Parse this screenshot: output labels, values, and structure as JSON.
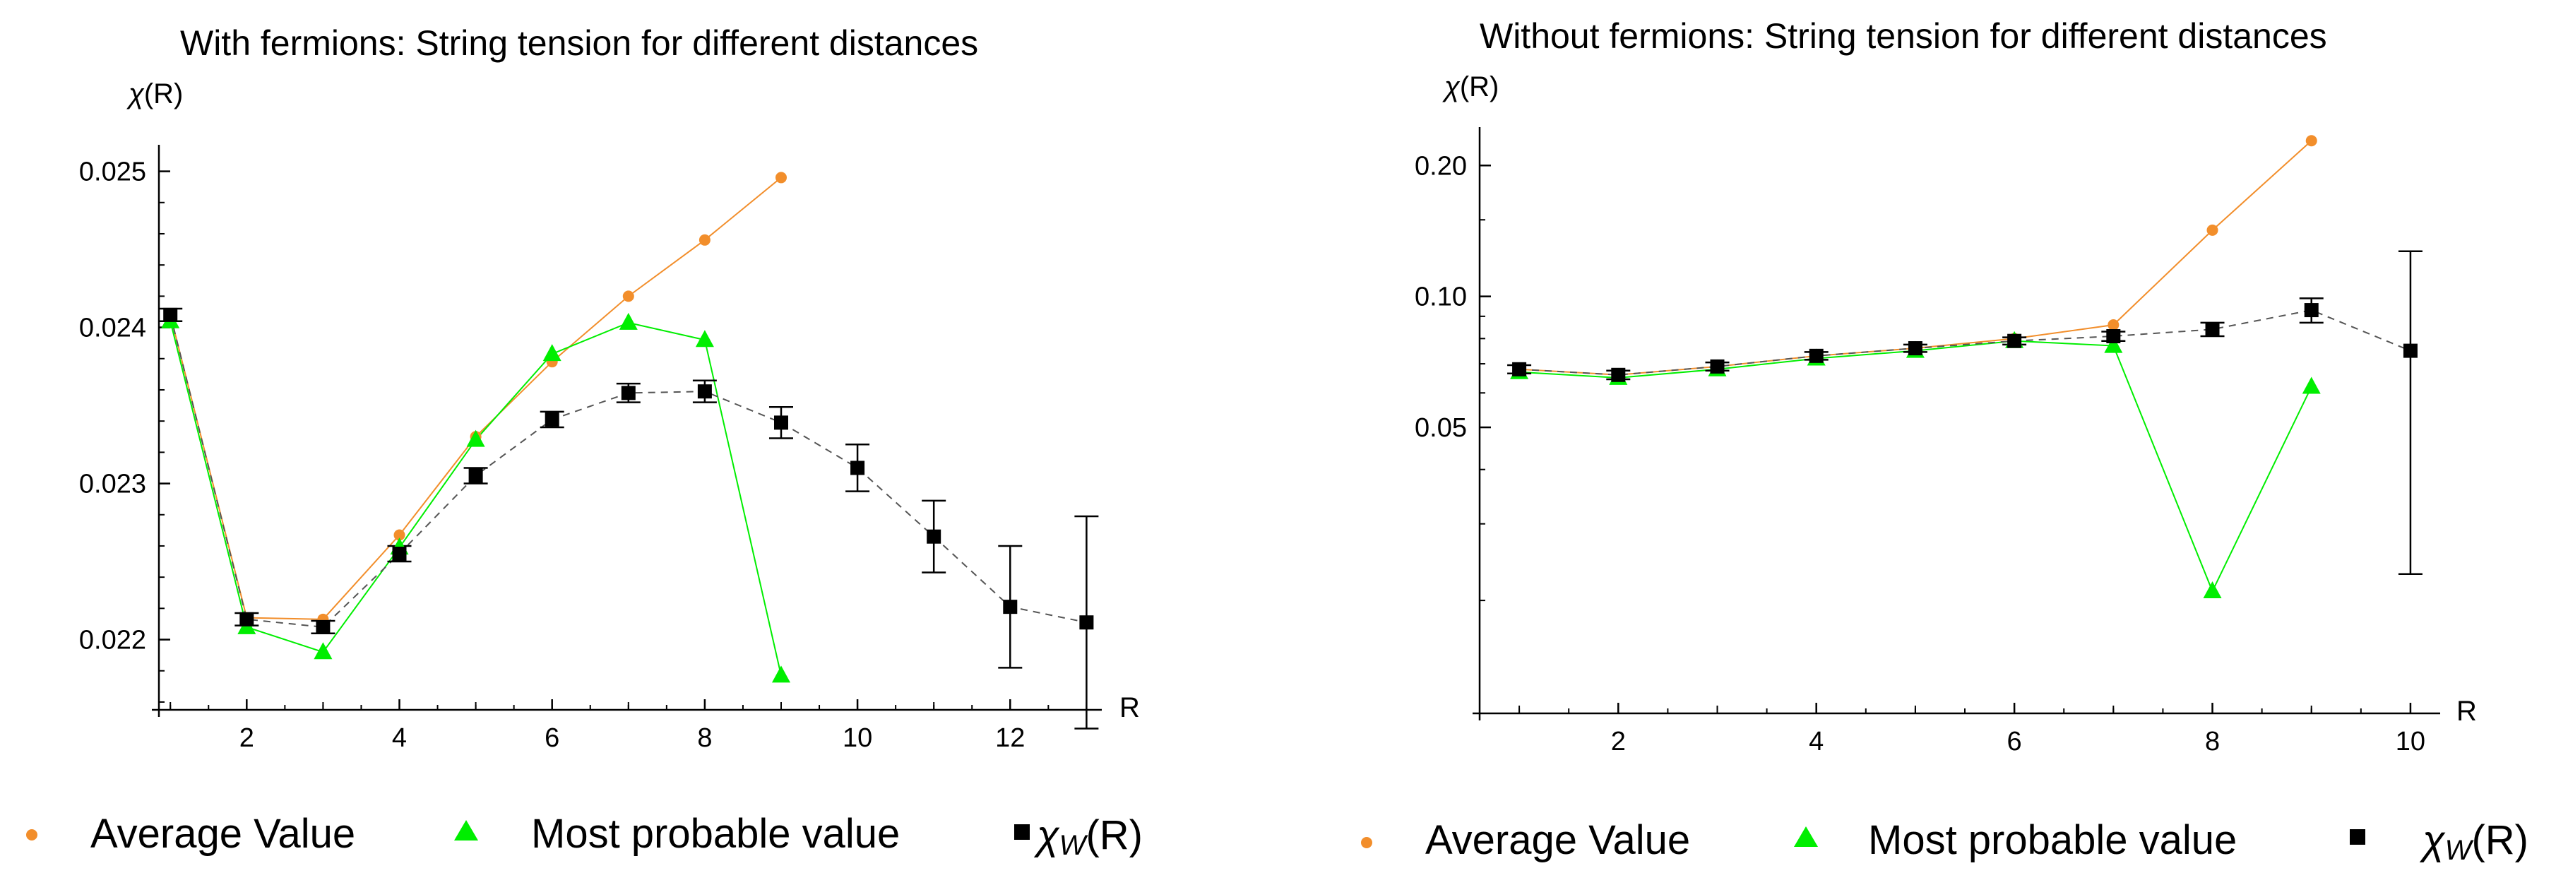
{
  "colors": {
    "average": "#f28e2b",
    "most_probable": "#00ee00",
    "chi_w": "#000000"
  },
  "chart_data": [
    {
      "type": "scatter",
      "title": "With fermions: String tension for different distances",
      "ylabel_symbol": "χ",
      "ylabel_arg": "(R)",
      "xlabel": "R",
      "xlim": [
        0.85,
        13.2
      ],
      "ylim": [
        0.02155,
        0.02517
      ],
      "xticks": [
        2,
        4,
        6,
        8,
        10,
        12
      ],
      "xtick_labels": [
        "2",
        "4",
        "6",
        "8",
        "10",
        "12"
      ],
      "yticks": [
        0.022,
        0.023,
        0.024,
        0.025
      ],
      "ytick_labels": [
        "0.022",
        "0.023",
        "0.024",
        "0.025"
      ],
      "series": [
        {
          "name": "Average Value",
          "marker": "circle",
          "x": [
            1,
            2,
            3,
            4,
            5,
            6,
            7,
            8,
            9
          ],
          "y": [
            0.02408,
            0.02214,
            0.02213,
            0.02267,
            0.0233,
            0.02378,
            0.0242,
            0.02456,
            0.02496
          ]
        },
        {
          "name": "Most probable value",
          "marker": "triangle",
          "x": [
            1,
            2,
            3,
            4,
            5,
            6,
            7,
            8,
            9
          ],
          "y": [
            0.02404,
            0.02208,
            0.02192,
            0.02259,
            0.02328,
            0.02383,
            0.02403,
            0.02392,
            0.02177
          ]
        },
        {
          "name": "χw(R)",
          "marker": "square",
          "x": [
            1,
            2,
            3,
            4,
            5,
            6,
            7,
            8,
            9,
            10,
            11,
            12,
            13
          ],
          "y": [
            0.02408,
            0.02213,
            0.02208,
            0.02255,
            0.02305,
            0.02341,
            0.02358,
            0.02359,
            0.02339,
            0.0231,
            0.02266,
            0.02221,
            0.02211
          ],
          "err": [
            4e-05,
            4e-05,
            4e-05,
            5e-05,
            5e-05,
            5e-05,
            6e-05,
            7e-05,
            0.0001,
            0.00015,
            0.00023,
            0.00039,
            0.00068
          ]
        }
      ],
      "legend": {
        "average": "Average Value",
        "most_probable": "Most probable value",
        "chi_symbol": "χ",
        "chi_sub": "W",
        "chi_arg": "(R)"
      }
    },
    {
      "type": "scatter",
      "title": "Without fermions: String tension for different distances",
      "ylabel_symbol": "χ",
      "ylabel_arg": "(R)",
      "xlabel": "R",
      "xlim": [
        0.6,
        10.3
      ],
      "ylim": [
        0.011,
        0.245
      ],
      "xticks": [
        2,
        4,
        6,
        8,
        10
      ],
      "xtick_labels": [
        "2",
        "4",
        "6",
        "8",
        "10"
      ],
      "yticks": [
        0.05,
        0.1,
        0.2
      ],
      "ytick_labels": [
        "0.05",
        "0.10",
        "0.20"
      ],
      "series": [
        {
          "name": "Average Value",
          "marker": "circle",
          "x": [
            1,
            2,
            3,
            4,
            5,
            6,
            7,
            8,
            9
          ],
          "y": [
            0.068,
            0.066,
            0.069,
            0.073,
            0.076,
            0.08,
            0.086,
            0.142,
            0.228
          ]
        },
        {
          "name": "Most probable value",
          "marker": "triangle",
          "x": [
            1,
            2,
            3,
            4,
            5,
            6,
            7,
            8,
            9
          ],
          "y": [
            0.067,
            0.065,
            0.068,
            0.072,
            0.075,
            0.079,
            0.077,
            0.021,
            0.062
          ]
        },
        {
          "name": "χw(R)",
          "marker": "square",
          "x": [
            1,
            2,
            3,
            4,
            5,
            6,
            7,
            8,
            9,
            10
          ],
          "y": [
            0.068,
            0.066,
            0.069,
            0.073,
            0.076,
            0.079,
            0.081,
            0.084,
            0.093,
            0.075
          ],
          "err": [
            0.0015,
            0.0015,
            0.0015,
            0.0015,
            0.0015,
            0.0015,
            0.002,
            0.003,
            0.006,
            0.052
          ]
        }
      ],
      "legend": {
        "average": "Average Value",
        "most_probable": "Most probable value",
        "chi_symbol": "χ",
        "chi_sub": "W",
        "chi_arg": "(R)"
      }
    }
  ]
}
